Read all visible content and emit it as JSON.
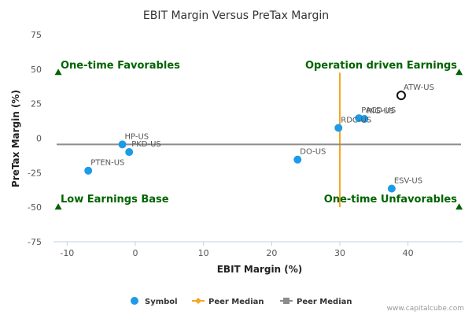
{
  "chart_data": {
    "type": "scatter",
    "title": "EBIT Margin Versus PreTax Margin",
    "xlabel": "EBIT Margin (%)",
    "ylabel": "PreTax Margin (%)",
    "xlim": [
      -12,
      48
    ],
    "ylim": [
      -75,
      75
    ],
    "xticks": [
      -10,
      0,
      10,
      20,
      30,
      40
    ],
    "yticks": [
      -75,
      -50,
      -25,
      0,
      25,
      50,
      75
    ],
    "grid": false,
    "legend_placement": "bottom",
    "series": [
      {
        "name": "Symbol",
        "color": "#1e9be8",
        "points": [
          {
            "label": "ATW-US",
            "x": 39.0,
            "y": 31.0,
            "highlight": true
          },
          {
            "label": "PACD-US",
            "x": 32.8,
            "y": 14.5
          },
          {
            "label": "RIG-US",
            "x": 33.6,
            "y": 14.0
          },
          {
            "label": "RDC-US",
            "x": 29.8,
            "y": 7.5
          },
          {
            "label": "HP-US",
            "x": -1.9,
            "y": -4.5
          },
          {
            "label": "PKD-US",
            "x": -0.9,
            "y": -10.0
          },
          {
            "label": "PTEN-US",
            "x": -6.9,
            "y": -23.5
          },
          {
            "label": "DO-US",
            "x": 23.8,
            "y": -15.5
          },
          {
            "label": "ESV-US",
            "x": 37.6,
            "y": -36.5
          }
        ]
      },
      {
        "name": "Peer Median",
        "color": "#f5a623",
        "axis": "x",
        "value": 30.0
      },
      {
        "name": "Peer Median",
        "color": "#8c8c8c",
        "axis": "y",
        "value": -4.5
      }
    ],
    "quadrant_labels": {
      "top_left": "One-time Favorables",
      "top_right": "Operation driven Earnings",
      "bottom_left": "Low Earnings Base",
      "bottom_right": "One-time Unfavorables"
    },
    "quadrant_label_color": "#006400",
    "watermark": "www.capitalcube.com"
  }
}
